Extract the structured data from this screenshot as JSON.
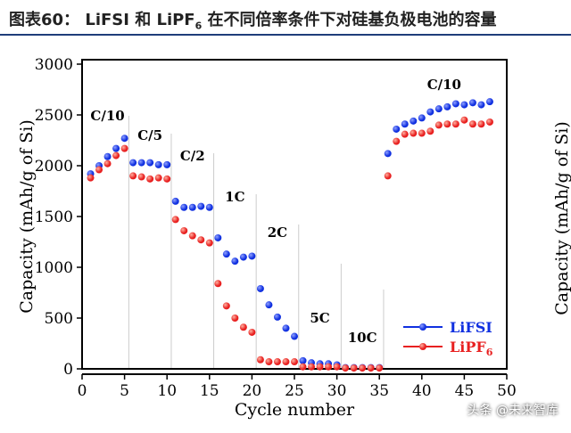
{
  "header": {
    "title_prefix": "图表60：",
    "title_main": "LiFSI 和 LiPF",
    "title_sub": "6",
    "title_rest": " 在不同倍率条件下对硅基负极电池的容量"
  },
  "watermark": "头条 @未来智库",
  "chart_data": {
    "type": "scatter",
    "xlabel": "Cycle number",
    "ylabel": "Capacity (mAh/g of Si)",
    "xlim": [
      0,
      50
    ],
    "ylim": [
      0,
      3000
    ],
    "xticks": [
      0,
      5,
      10,
      15,
      20,
      25,
      30,
      35,
      40,
      45,
      50
    ],
    "yticks": [
      0,
      500,
      1000,
      1500,
      2000,
      2500,
      3000
    ],
    "grid": false,
    "legend_position": "bottom-right",
    "colors": {
      "LiFSI": "#1030e0",
      "LiPF6": "#e82020"
    },
    "rate_labels": [
      {
        "text": "C/10",
        "x": 3
      },
      {
        "text": "C/5",
        "x": 8
      },
      {
        "text": "C/2",
        "x": 13
      },
      {
        "text": "1C",
        "x": 18
      },
      {
        "text": "2C",
        "x": 23
      },
      {
        "text": "5C",
        "x": 28
      },
      {
        "text": "10C",
        "x": 33
      },
      {
        "text": "C/10",
        "x": 42
      }
    ],
    "dividers": [
      5.5,
      10.5,
      15.5,
      20.5,
      25.5,
      30.5,
      35.5
    ],
    "x": [
      1,
      2,
      3,
      4,
      5,
      6,
      7,
      8,
      9,
      10,
      11,
      12,
      13,
      14,
      15,
      16,
      17,
      18,
      19,
      20,
      21,
      22,
      23,
      24,
      25,
      26,
      27,
      28,
      29,
      30,
      31,
      32,
      33,
      34,
      35,
      36,
      37,
      38,
      39,
      40,
      41,
      42,
      43,
      44,
      45,
      46,
      47,
      48
    ],
    "series": [
      {
        "name": "LiFSI",
        "values": [
          1920,
          2000,
          2090,
          2170,
          2270,
          2030,
          2030,
          2030,
          2010,
          2010,
          1650,
          1590,
          1590,
          1600,
          1590,
          1290,
          1130,
          1060,
          1100,
          1110,
          790,
          630,
          510,
          400,
          320,
          80,
          60,
          50,
          50,
          40,
          12,
          12,
          12,
          12,
          12,
          2120,
          2360,
          2410,
          2440,
          2470,
          2530,
          2560,
          2580,
          2610,
          2600,
          2620,
          2600,
          2630
        ]
      },
      {
        "name": "LiPF",
        "name_sub": "6",
        "values": [
          1880,
          1960,
          2020,
          2100,
          2170,
          1900,
          1890,
          1870,
          1880,
          1870,
          1470,
          1360,
          1310,
          1270,
          1240,
          840,
          620,
          500,
          410,
          360,
          90,
          70,
          70,
          70,
          70,
          20,
          20,
          20,
          20,
          20,
          8,
          8,
          8,
          8,
          8,
          1900,
          2240,
          2310,
          2320,
          2320,
          2340,
          2400,
          2410,
          2410,
          2450,
          2410,
          2410,
          2430
        ]
      }
    ]
  },
  "right_partial_axis_label": "Capacity (mAh/g of Si)"
}
